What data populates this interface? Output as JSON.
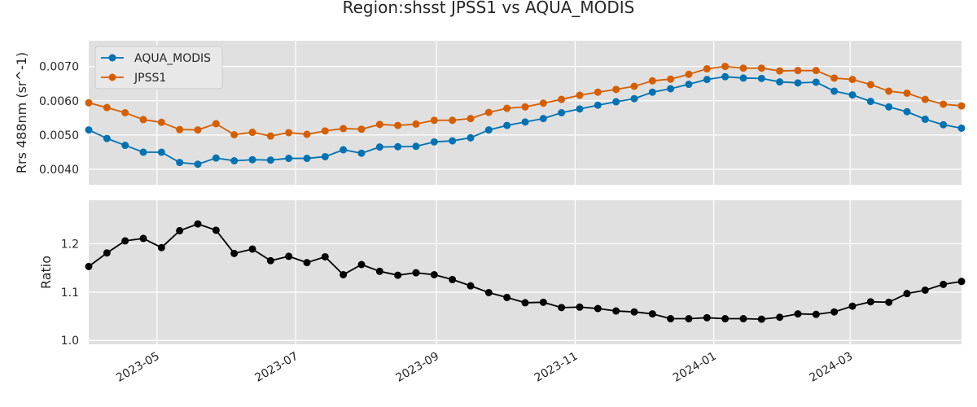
{
  "chart_data": {
    "type": "line",
    "title": "Region:shsst JPSS1 vs AQUA_MODIS",
    "x": [
      "2023-04-01",
      "2023-04-09",
      "2023-04-17",
      "2023-04-25",
      "2023-05-03",
      "2023-05-11",
      "2023-05-19",
      "2023-05-27",
      "2023-06-04",
      "2023-06-12",
      "2023-06-20",
      "2023-06-28",
      "2023-07-06",
      "2023-07-14",
      "2023-07-22",
      "2023-07-30",
      "2023-08-07",
      "2023-08-15",
      "2023-08-23",
      "2023-08-31",
      "2023-09-08",
      "2023-09-16",
      "2023-09-24",
      "2023-10-02",
      "2023-10-10",
      "2023-10-18",
      "2023-10-26",
      "2023-11-03",
      "2023-11-11",
      "2023-11-19",
      "2023-11-27",
      "2023-12-05",
      "2023-12-13",
      "2023-12-21",
      "2023-12-29",
      "2024-01-06",
      "2024-01-14",
      "2024-01-22",
      "2024-01-30",
      "2024-02-07",
      "2024-02-15",
      "2024-02-23",
      "2024-03-02",
      "2024-03-10",
      "2024-03-18",
      "2024-03-26",
      "2024-04-03",
      "2024-04-11",
      "2024-04-19"
    ],
    "x_ticks": [
      "2023-05",
      "2023-07",
      "2023-09",
      "2023-11",
      "2024-01",
      "2024-03"
    ],
    "x_range": [
      "2023-04-01",
      "2024-04-19"
    ],
    "panels": [
      {
        "ylabel": "Rrs 488nm (sr^-1)",
        "ylim": [
          0.00355,
          0.00775
        ],
        "y_ticks": [
          "0.0040",
          "0.0050",
          "0.0060",
          "0.0070"
        ],
        "legend": "top-left",
        "series": [
          {
            "name": "AQUA_MODIS",
            "color": "#0072b2",
            "values": [
              0.00515,
              0.0049,
              0.0047,
              0.0045,
              0.0045,
              0.0042,
              0.00415,
              0.00433,
              0.00425,
              0.00428,
              0.00427,
              0.00432,
              0.00432,
              0.00437,
              0.00457,
              0.00447,
              0.00465,
              0.00466,
              0.00467,
              0.0048,
              0.00483,
              0.00492,
              0.00515,
              0.00528,
              0.00538,
              0.00548,
              0.00565,
              0.00576,
              0.00587,
              0.00597,
              0.00606,
              0.00625,
              0.00635,
              0.00648,
              0.00662,
              0.0067,
              0.00666,
              0.00665,
              0.00655,
              0.00652,
              0.00654,
              0.00628,
              0.00617,
              0.00598,
              0.00582,
              0.00568,
              0.00546,
              0.0053,
              0.0052
            ]
          },
          {
            "name": "JPSS1",
            "color": "#d55e00",
            "values": [
              0.00594,
              0.0058,
              0.00565,
              0.00545,
              0.00537,
              0.00516,
              0.00515,
              0.00533,
              0.00501,
              0.00508,
              0.00497,
              0.00507,
              0.00502,
              0.00512,
              0.00519,
              0.00517,
              0.00531,
              0.00528,
              0.00532,
              0.00543,
              0.00543,
              0.00548,
              0.00566,
              0.00578,
              0.00582,
              0.00593,
              0.00604,
              0.00616,
              0.00625,
              0.00633,
              0.00642,
              0.00658,
              0.00663,
              0.00677,
              0.00693,
              0.007,
              0.00695,
              0.00695,
              0.00687,
              0.00688,
              0.00688,
              0.00666,
              0.00662,
              0.00647,
              0.00628,
              0.00622,
              0.00604,
              0.0059,
              0.00585
            ]
          }
        ]
      },
      {
        "ylabel": "Ratio",
        "ylim": [
          0.992,
          1.29
        ],
        "y_ticks": [
          "1.0",
          "1.1",
          "1.2"
        ],
        "series": [
          {
            "name": "",
            "color": "#000000",
            "values": [
              1.153,
              1.181,
              1.206,
              1.211,
              1.192,
              1.227,
              1.241,
              1.228,
              1.18,
              1.189,
              1.165,
              1.174,
              1.161,
              1.173,
              1.136,
              1.157,
              1.143,
              1.135,
              1.14,
              1.136,
              1.126,
              1.113,
              1.099,
              1.089,
              1.078,
              1.079,
              1.068,
              1.069,
              1.066,
              1.061,
              1.059,
              1.055,
              1.045,
              1.045,
              1.047,
              1.045,
              1.045,
              1.044,
              1.048,
              1.055,
              1.054,
              1.059,
              1.071,
              1.08,
              1.079,
              1.097,
              1.104,
              1.116,
              1.122
            ]
          }
        ]
      }
    ],
    "grid": true
  }
}
